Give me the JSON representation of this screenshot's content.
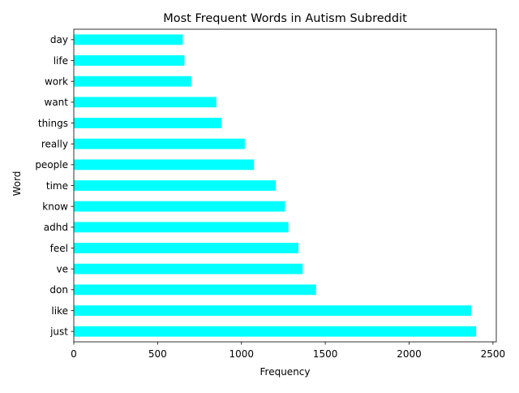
{
  "chart_data": {
    "type": "bar",
    "orientation": "horizontal",
    "title": "Most Frequent Words in Autism Subreddit",
    "xlabel": "Frequency",
    "ylabel": "Word",
    "categories": [
      "just",
      "like",
      "don",
      "ve",
      "feel",
      "adhd",
      "know",
      "time",
      "people",
      "really",
      "things",
      "want",
      "work",
      "life",
      "day"
    ],
    "values": [
      2400,
      2370,
      1445,
      1365,
      1340,
      1280,
      1260,
      1205,
      1075,
      1020,
      880,
      850,
      700,
      660,
      650
    ],
    "xlim": [
      0,
      2520
    ],
    "xticks": [
      0,
      500,
      1000,
      1500,
      2000,
      2500
    ],
    "grid": false,
    "legend": "none",
    "colors": {
      "bar": "#00ffff",
      "axis": "#000000"
    }
  }
}
